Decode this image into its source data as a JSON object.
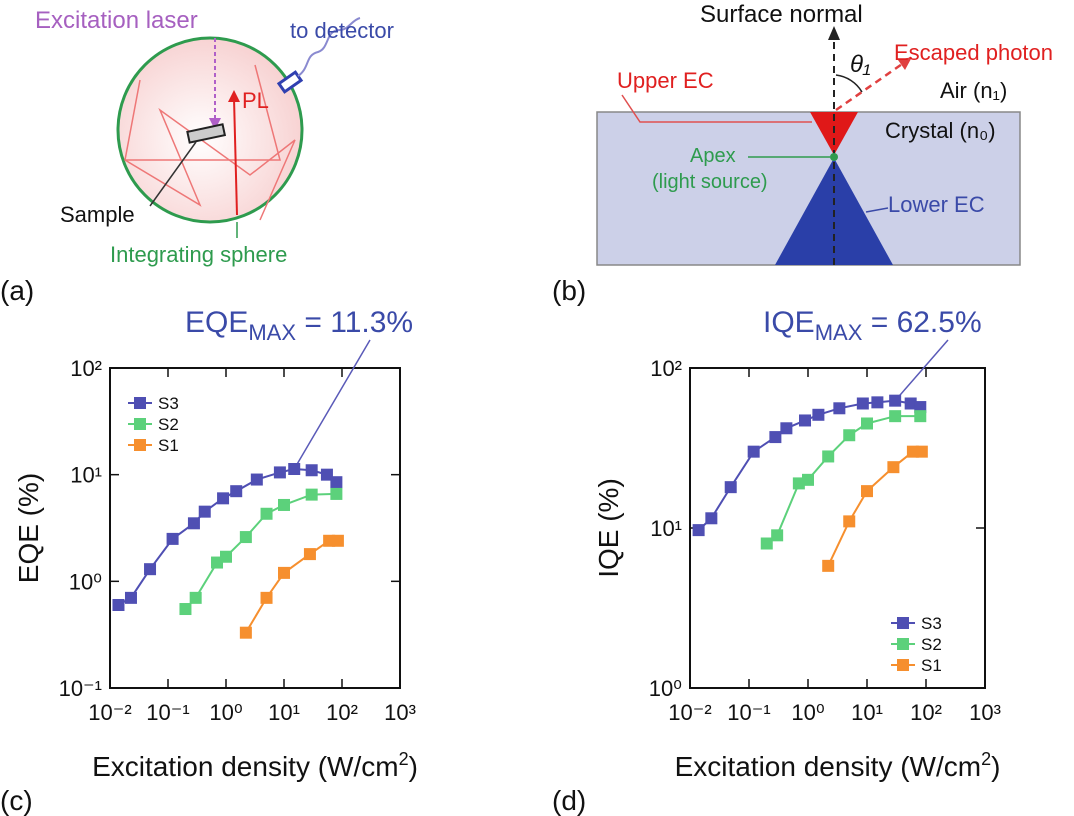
{
  "panels": {
    "a": {
      "label": "(a)",
      "excitation_laser": "Excitation laser",
      "to_detector": "to detector",
      "pl": "PL",
      "sample": "Sample",
      "sphere": "Integrating sphere"
    },
    "b": {
      "label": "(b)",
      "surface_normal": "Surface normal",
      "theta": "θ₁",
      "escaped_photon": "Escaped photon",
      "air": "Air (n₁)",
      "upper_ec": "Upper EC",
      "crystal": "Crystal (n₀)",
      "apex": "Apex",
      "light_source": "(light source)",
      "lower_ec": "Lower EC"
    }
  },
  "chart_data": [
    {
      "type": "line",
      "panel": "(c)",
      "ylabel": "EQE (%)",
      "xlabel_parts": [
        "Excitation density (W/cm",
        "2",
        ")"
      ],
      "annotation_parts": [
        "EQE",
        "MAX",
        " = 11.3%"
      ],
      "xscale": "log",
      "yscale": "log",
      "xlim": [
        0.01,
        1000
      ],
      "ylim": [
        0.1,
        100
      ],
      "xticks": [
        {
          "value": 0.01,
          "label": "10⁻²"
        },
        {
          "value": 0.1,
          "label": "10⁻¹"
        },
        {
          "value": 1,
          "label": "10⁰"
        },
        {
          "value": 10,
          "label": "10¹"
        },
        {
          "value": 100,
          "label": "10²"
        },
        {
          "value": 1000,
          "label": "10³"
        }
      ],
      "yticks": [
        {
          "value": 0.1,
          "label": "10⁻¹"
        },
        {
          "value": 1,
          "label": "10⁰"
        },
        {
          "value": 10,
          "label": "10¹"
        },
        {
          "value": 100,
          "label": "10²"
        }
      ],
      "legend": "upper left",
      "series": [
        {
          "name": "S3",
          "color": "#4f4fb3",
          "x": [
            0.014,
            0.023,
            0.049,
            0.12,
            0.28,
            0.43,
            0.89,
            1.5,
            3.4,
            8.5,
            15,
            30,
            55,
            80
          ],
          "values": [
            0.6,
            0.7,
            1.3,
            2.5,
            3.5,
            4.5,
            6,
            7,
            9,
            10.5,
            11.3,
            11,
            10,
            8.5
          ]
        },
        {
          "name": "S2",
          "color": "#5cd17b",
          "x": [
            0.2,
            0.3,
            0.7,
            1,
            2.2,
            5,
            10,
            30,
            80
          ],
          "values": [
            0.55,
            0.7,
            1.5,
            1.7,
            2.6,
            4.3,
            5.2,
            6.5,
            6.6
          ]
        },
        {
          "name": "S1",
          "color": "#f68f2e",
          "x": [
            2.2,
            5,
            10,
            28,
            60,
            85
          ],
          "values": [
            0.33,
            0.7,
            1.2,
            1.8,
            2.4,
            2.4
          ]
        }
      ]
    },
    {
      "type": "line",
      "panel": "(d)",
      "ylabel": "IQE (%)",
      "xlabel_parts": [
        "Excitation density (W/cm",
        "2",
        ")"
      ],
      "annotation_parts": [
        "IQE",
        "MAX",
        " = 62.5%"
      ],
      "xscale": "log",
      "yscale": "log",
      "xlim": [
        0.01,
        1000
      ],
      "ylim": [
        1,
        100
      ],
      "xticks": [
        {
          "value": 0.01,
          "label": "10⁻²"
        },
        {
          "value": 0.1,
          "label": "10⁻¹"
        },
        {
          "value": 1,
          "label": "10⁰"
        },
        {
          "value": 10,
          "label": "10¹"
        },
        {
          "value": 100,
          "label": "10²"
        },
        {
          "value": 1000,
          "label": "10³"
        }
      ],
      "yticks": [
        {
          "value": 1,
          "label": "10⁰"
        },
        {
          "value": 10,
          "label": "10¹"
        },
        {
          "value": 100,
          "label": "10²"
        }
      ],
      "legend": "lower right",
      "series": [
        {
          "name": "S3",
          "color": "#4f4fb3",
          "x": [
            0.014,
            0.023,
            0.049,
            0.12,
            0.28,
            0.43,
            0.89,
            1.5,
            3.4,
            8.5,
            15,
            30,
            55,
            80
          ],
          "values": [
            9.7,
            11.5,
            18,
            30,
            37,
            42,
            47,
            51,
            56,
            60,
            61,
            62.5,
            60,
            57
          ]
        },
        {
          "name": "S2",
          "color": "#5cd17b",
          "x": [
            0.2,
            0.3,
            0.7,
            1,
            2.2,
            5,
            10,
            30,
            80
          ],
          "values": [
            8,
            9,
            19,
            20,
            28,
            38,
            45,
            50,
            50
          ]
        },
        {
          "name": "S1",
          "color": "#f68f2e",
          "x": [
            2.2,
            5,
            10,
            28,
            60,
            85
          ],
          "values": [
            5.8,
            11,
            17,
            24,
            30,
            30
          ]
        }
      ]
    }
  ]
}
